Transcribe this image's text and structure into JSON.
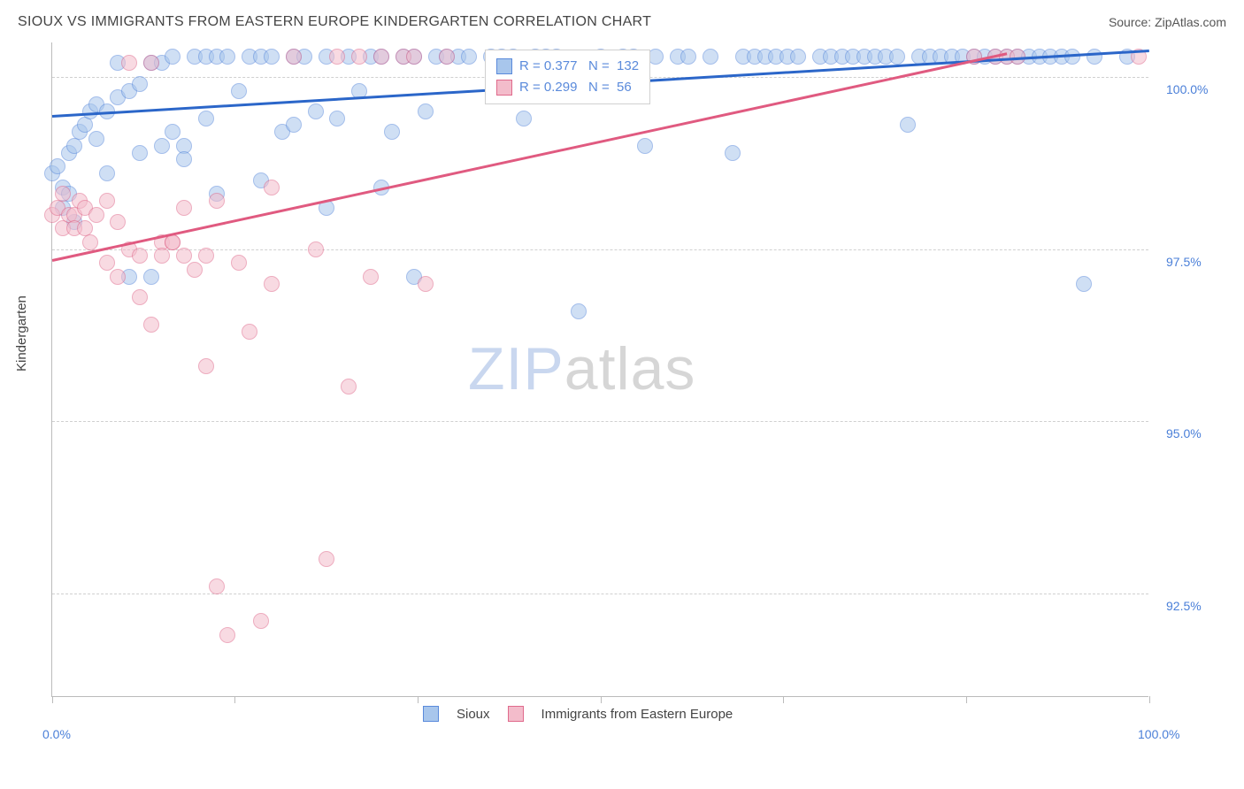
{
  "title": "SIOUX VS IMMIGRANTS FROM EASTERN EUROPE KINDERGARTEN CORRELATION CHART",
  "source_label": "Source: ZipAtlas.com",
  "y_axis_label": "Kindergarten",
  "watermark": {
    "zip": "ZIP",
    "atlas": "atlas"
  },
  "chart": {
    "type": "scatter",
    "background_color": "#ffffff",
    "grid_color": "#d0d0d0",
    "axis_color": "#bbbbbb",
    "tick_label_color": "#4a7fd8",
    "xlim": [
      0,
      100
    ],
    "ylim": [
      91.0,
      100.5
    ],
    "y_ticks": [
      92.5,
      95.0,
      97.5,
      100.0
    ],
    "y_tick_labels": [
      "92.5%",
      "95.0%",
      "97.5%",
      "100.0%"
    ],
    "x_ticks": [
      0,
      16.6,
      33.3,
      50,
      66.6,
      83.3,
      100
    ],
    "x_tick_labels": {
      "0": "0.0%",
      "100": "100.0%"
    },
    "point_radius": 9,
    "point_opacity": 0.55,
    "series": [
      {
        "name": "Sioux",
        "color_fill": "#a8c6ec",
        "color_stroke": "#5a8adb",
        "trend": {
          "x1": 0,
          "y1": 99.45,
          "x2": 100,
          "y2": 100.4,
          "color": "#2b66c9",
          "width": 2.5
        },
        "stats": {
          "R": "0.377",
          "N": "132"
        },
        "points": [
          [
            0,
            98.6
          ],
          [
            0.5,
            98.7
          ],
          [
            1,
            98.1
          ],
          [
            1,
            98.4
          ],
          [
            1.5,
            98.3
          ],
          [
            1.5,
            98.9
          ],
          [
            2,
            97.9
          ],
          [
            2,
            99.0
          ],
          [
            2.5,
            99.2
          ],
          [
            3,
            99.3
          ],
          [
            3.5,
            99.5
          ],
          [
            4,
            99.1
          ],
          [
            4,
            99.6
          ],
          [
            5,
            99.5
          ],
          [
            5,
            98.6
          ],
          [
            6,
            99.7
          ],
          [
            6,
            100.2
          ],
          [
            7,
            99.8
          ],
          [
            7,
            97.1
          ],
          [
            8,
            99.9
          ],
          [
            8,
            98.9
          ],
          [
            9,
            100.2
          ],
          [
            9,
            97.1
          ],
          [
            10,
            99.0
          ],
          [
            10,
            100.2
          ],
          [
            11,
            99.2
          ],
          [
            11,
            100.3
          ],
          [
            12,
            99.0
          ],
          [
            12,
            98.8
          ],
          [
            13,
            100.3
          ],
          [
            14,
            100.3
          ],
          [
            14,
            99.4
          ],
          [
            15,
            100.3
          ],
          [
            15,
            98.3
          ],
          [
            16,
            100.3
          ],
          [
            17,
            99.8
          ],
          [
            18,
            100.3
          ],
          [
            19,
            98.5
          ],
          [
            19,
            100.3
          ],
          [
            20,
            100.3
          ],
          [
            21,
            99.2
          ],
          [
            22,
            100.3
          ],
          [
            22,
            99.3
          ],
          [
            23,
            100.3
          ],
          [
            24,
            99.5
          ],
          [
            25,
            100.3
          ],
          [
            25,
            98.1
          ],
          [
            26,
            99.4
          ],
          [
            27,
            100.3
          ],
          [
            28,
            99.8
          ],
          [
            29,
            100.3
          ],
          [
            30,
            100.3
          ],
          [
            30,
            98.4
          ],
          [
            31,
            99.2
          ],
          [
            32,
            100.3
          ],
          [
            33,
            100.3
          ],
          [
            33,
            97.1
          ],
          [
            34,
            99.5
          ],
          [
            35,
            100.3
          ],
          [
            36,
            100.3
          ],
          [
            37,
            100.3
          ],
          [
            38,
            100.3
          ],
          [
            40,
            100.3
          ],
          [
            41,
            100.3
          ],
          [
            42,
            100.3
          ],
          [
            43,
            99.4
          ],
          [
            44,
            100.3
          ],
          [
            45,
            100.3
          ],
          [
            46,
            100.3
          ],
          [
            48,
            96.6
          ],
          [
            50,
            100.3
          ],
          [
            52,
            100.3
          ],
          [
            53,
            100.3
          ],
          [
            54,
            99.0
          ],
          [
            55,
            100.3
          ],
          [
            57,
            100.3
          ],
          [
            58,
            100.3
          ],
          [
            60,
            100.3
          ],
          [
            62,
            98.9
          ],
          [
            63,
            100.3
          ],
          [
            64,
            100.3
          ],
          [
            65,
            100.3
          ],
          [
            66,
            100.3
          ],
          [
            67,
            100.3
          ],
          [
            68,
            100.3
          ],
          [
            70,
            100.3
          ],
          [
            71,
            100.3
          ],
          [
            72,
            100.3
          ],
          [
            73,
            100.3
          ],
          [
            74,
            100.3
          ],
          [
            75,
            100.3
          ],
          [
            76,
            100.3
          ],
          [
            77,
            100.3
          ],
          [
            78,
            99.3
          ],
          [
            79,
            100.3
          ],
          [
            80,
            100.3
          ],
          [
            81,
            100.3
          ],
          [
            82,
            100.3
          ],
          [
            83,
            100.3
          ],
          [
            84,
            100.3
          ],
          [
            85,
            100.3
          ],
          [
            86,
            100.3
          ],
          [
            87,
            100.3
          ],
          [
            88,
            100.3
          ],
          [
            89,
            100.3
          ],
          [
            90,
            100.3
          ],
          [
            91,
            100.3
          ],
          [
            92,
            100.3
          ],
          [
            93,
            100.3
          ],
          [
            94,
            97.0
          ],
          [
            95,
            100.3
          ],
          [
            98,
            100.3
          ]
        ]
      },
      {
        "name": "Immigrants from Eastern Europe",
        "color_fill": "#f3bccb",
        "color_stroke": "#e06a8c",
        "trend": {
          "x1": 0,
          "y1": 97.35,
          "x2": 87,
          "y2": 100.35,
          "color": "#e05a80",
          "width": 2.5
        },
        "stats": {
          "R": "0.299",
          "N": "56"
        },
        "points": [
          [
            0,
            98.0
          ],
          [
            0.5,
            98.1
          ],
          [
            1,
            98.3
          ],
          [
            1,
            97.8
          ],
          [
            1.5,
            98.0
          ],
          [
            2,
            98.0
          ],
          [
            2,
            97.8
          ],
          [
            2.5,
            98.2
          ],
          [
            3,
            97.8
          ],
          [
            3,
            98.1
          ],
          [
            3.5,
            97.6
          ],
          [
            4,
            98.0
          ],
          [
            5,
            98.2
          ],
          [
            5,
            97.3
          ],
          [
            6,
            97.9
          ],
          [
            6,
            97.1
          ],
          [
            7,
            97.5
          ],
          [
            7,
            100.2
          ],
          [
            8,
            97.4
          ],
          [
            8,
            96.8
          ],
          [
            9,
            96.4
          ],
          [
            9,
            100.2
          ],
          [
            10,
            97.6
          ],
          [
            10,
            97.4
          ],
          [
            11,
            97.6
          ],
          [
            11,
            97.6
          ],
          [
            12,
            97.4
          ],
          [
            12,
            98.1
          ],
          [
            13,
            97.2
          ],
          [
            14,
            97.4
          ],
          [
            14,
            95.8
          ],
          [
            15,
            98.2
          ],
          [
            15,
            92.6
          ],
          [
            16,
            91.9
          ],
          [
            17,
            97.3
          ],
          [
            18,
            96.3
          ],
          [
            19,
            92.1
          ],
          [
            20,
            97.0
          ],
          [
            20,
            98.4
          ],
          [
            22,
            100.3
          ],
          [
            24,
            97.5
          ],
          [
            25,
            93.0
          ],
          [
            26,
            100.3
          ],
          [
            27,
            95.5
          ],
          [
            28,
            100.3
          ],
          [
            29,
            97.1
          ],
          [
            30,
            100.3
          ],
          [
            32,
            100.3
          ],
          [
            33,
            100.3
          ],
          [
            34,
            97.0
          ],
          [
            36,
            100.3
          ],
          [
            84,
            100.3
          ],
          [
            86,
            100.3
          ],
          [
            87,
            100.3
          ],
          [
            88,
            100.3
          ],
          [
            99,
            100.3
          ]
        ]
      }
    ]
  },
  "legend_top": {
    "R_label": "R =",
    "N_label": "N ="
  },
  "legend_bottom": {
    "items": [
      "Sioux",
      "Immigrants from Eastern Europe"
    ]
  }
}
